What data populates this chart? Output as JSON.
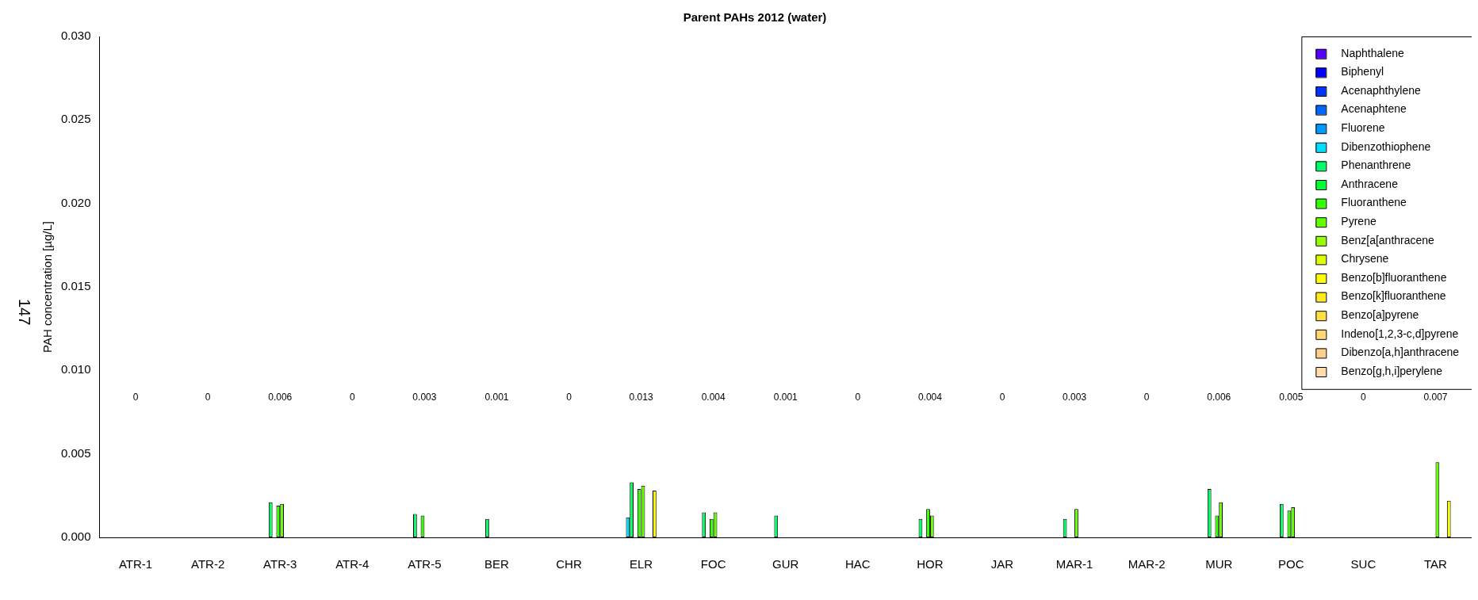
{
  "chart_data": {
    "type": "bar",
    "title": "Parent PAHs 2012 (water)",
    "ylabel": "PAH concentration [µg/L]",
    "categories": [
      "ATR-1",
      "ATR-2",
      "ATR-3",
      "ATR-4",
      "ATR-5",
      "BER",
      "CHR",
      "ELR",
      "FOC",
      "GUR",
      "HAC",
      "HOR",
      "JAR",
      "MAR-1",
      "MAR-2",
      "MUR",
      "POC",
      "SUC",
      "TAR"
    ],
    "series": [
      {
        "name": "Naphthalene",
        "color": "#5500ff",
        "values": [
          0,
          0,
          0,
          0,
          0,
          0,
          0,
          0,
          0,
          0,
          0,
          0,
          0,
          0,
          0,
          0,
          0,
          0,
          0
        ]
      },
      {
        "name": "Biphenyl",
        "color": "#0000ff",
        "values": [
          0,
          0,
          0,
          0,
          0,
          0,
          0,
          0,
          0,
          0,
          0,
          0,
          0,
          0,
          0,
          0,
          0,
          0,
          0
        ]
      },
      {
        "name": "Acenaphthylene",
        "color": "#0033ff",
        "values": [
          0,
          0,
          0,
          0,
          0,
          0,
          0,
          0,
          0,
          0,
          0,
          0,
          0,
          0,
          0,
          0,
          0,
          0,
          0
        ]
      },
      {
        "name": "Acenaphtene",
        "color": "#0066ff",
        "values": [
          0,
          0,
          0,
          0,
          0,
          0,
          0,
          0,
          0,
          0,
          0,
          0,
          0,
          0,
          0,
          0,
          0,
          0,
          0
        ]
      },
      {
        "name": "Fluorene",
        "color": "#0099ff",
        "values": [
          0,
          0,
          0,
          0,
          0,
          0,
          0,
          0,
          0,
          0,
          0,
          0,
          0,
          0,
          0,
          0,
          0,
          0,
          0
        ]
      },
      {
        "name": "Dibenzothiophene",
        "color": "#00ddff",
        "values": [
          0,
          0,
          0,
          0,
          0,
          0,
          0,
          0.0012,
          0,
          0,
          0,
          0,
          0,
          0,
          0,
          0,
          0,
          0,
          0
        ]
      },
      {
        "name": "Phenanthrene",
        "color": "#00ff66",
        "values": [
          0,
          0,
          0.0021,
          0,
          0.0014,
          0.0011,
          0,
          0.0033,
          0.0015,
          0.0013,
          0,
          0.0011,
          0,
          0.0011,
          0,
          0.0029,
          0.002,
          0,
          0
        ]
      },
      {
        "name": "Anthracene",
        "color": "#00ff33",
        "values": [
          0,
          0,
          0,
          0,
          0,
          0,
          0,
          0,
          0,
          0,
          0,
          0,
          0,
          0,
          0,
          0,
          0,
          0,
          0
        ]
      },
      {
        "name": "Fluoranthene",
        "color": "#33ff00",
        "values": [
          0,
          0,
          0.0019,
          0,
          0.0013,
          0,
          0,
          0.0029,
          0.0011,
          0,
          0,
          0.0017,
          0,
          0,
          0,
          0.0013,
          0.0016,
          0,
          0
        ]
      },
      {
        "name": "Pyrene",
        "color": "#66ff00",
        "values": [
          0,
          0,
          0.002,
          0,
          0,
          0,
          0,
          0.0031,
          0.0015,
          0,
          0,
          0.0013,
          0,
          0.0017,
          0,
          0.0021,
          0.0018,
          0,
          0.0045
        ]
      },
      {
        "name": "Benz[a[anthracene",
        "color": "#99ff00",
        "values": [
          0,
          0,
          0,
          0,
          0,
          0,
          0,
          0,
          0,
          0,
          0,
          0,
          0,
          0,
          0,
          0,
          0,
          0,
          0
        ]
      },
      {
        "name": "Chrysene",
        "color": "#ddff00",
        "values": [
          0,
          0,
          0,
          0,
          0,
          0,
          0,
          0,
          0,
          0,
          0,
          0,
          0,
          0,
          0,
          0,
          0,
          0,
          0
        ]
      },
      {
        "name": "Benzo[b]fluoranthene",
        "color": "#ffff00",
        "values": [
          0,
          0,
          0,
          0,
          0,
          0,
          0,
          0.0028,
          0,
          0,
          0,
          0,
          0,
          0,
          0,
          0,
          0,
          0,
          0.0022
        ]
      },
      {
        "name": "Benzo[k]fluoranthene",
        "color": "#ffea20",
        "values": [
          0,
          0,
          0,
          0,
          0,
          0,
          0,
          0,
          0,
          0,
          0,
          0,
          0,
          0,
          0,
          0,
          0,
          0,
          0
        ]
      },
      {
        "name": "Benzo[a]pyrene",
        "color": "#ffdd44",
        "values": [
          0,
          0,
          0,
          0,
          0,
          0,
          0,
          0,
          0,
          0,
          0,
          0,
          0,
          0,
          0,
          0,
          0,
          0,
          0
        ]
      },
      {
        "name": "Indeno[1,2,3-c,d]pyrene",
        "color": "#ffd777",
        "values": [
          0,
          0,
          0,
          0,
          0,
          0,
          0,
          0,
          0,
          0,
          0,
          0,
          0,
          0,
          0,
          0,
          0,
          0,
          0
        ]
      },
      {
        "name": "Dibenzo[a,h]anthracene",
        "color": "#fcd08a",
        "values": [
          0,
          0,
          0,
          0,
          0,
          0,
          0,
          0,
          0,
          0,
          0,
          0,
          0,
          0,
          0,
          0,
          0,
          0,
          0
        ]
      },
      {
        "name": "Benzo[g,h,i]perylene",
        "color": "#ffdcaa",
        "values": [
          0,
          0,
          0,
          0,
          0,
          0,
          0,
          0,
          0,
          0,
          0,
          0,
          0,
          0,
          0,
          0,
          0,
          0,
          0
        ]
      }
    ],
    "ylim": [
      0,
      0.03
    ],
    "yticks": [
      {
        "value": 0,
        "label": "0.000"
      },
      {
        "value": 0.005,
        "label": "0.005"
      },
      {
        "value": 0.01,
        "label": "0.010"
      },
      {
        "value": 0.015,
        "label": "0.015"
      },
      {
        "value": 0.02,
        "label": "0.020"
      },
      {
        "value": 0.025,
        "label": "0.025"
      },
      {
        "value": 0.03,
        "label": "0.030"
      }
    ],
    "grid": false,
    "legend": "top right",
    "annotations": [
      "147",
      "0",
      "0",
      "0.006",
      "0",
      "0.003",
      "0.001",
      "0",
      "0.013",
      "0.004",
      "0.001",
      "0",
      "0.004",
      "0",
      "0.003",
      "0",
      "0.006",
      "0.005",
      "0",
      "0.007"
    ]
  }
}
